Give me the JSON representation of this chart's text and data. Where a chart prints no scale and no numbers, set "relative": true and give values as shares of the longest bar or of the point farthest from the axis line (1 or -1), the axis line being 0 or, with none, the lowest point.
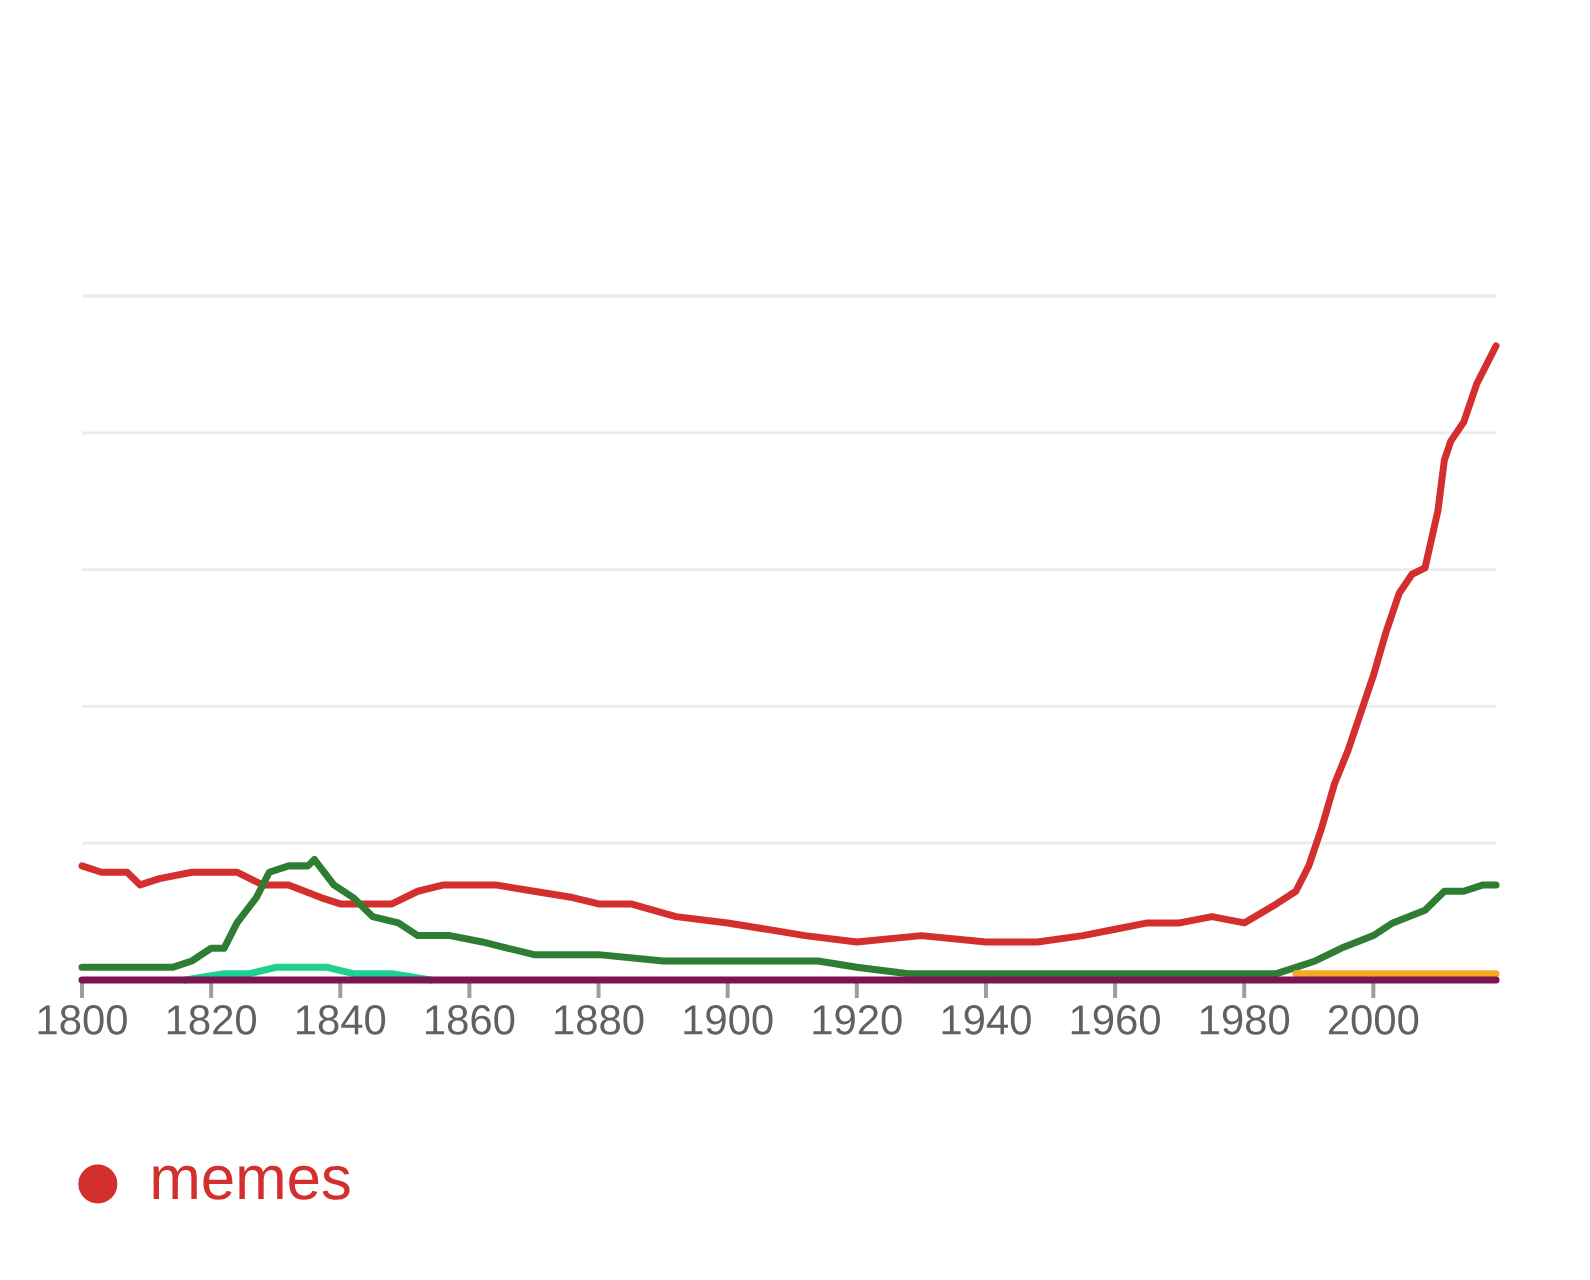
{
  "chart_data": {
    "type": "line",
    "relative": true,
    "xlim": [
      1800,
      2019
    ],
    "xticks": [
      1800,
      1820,
      1840,
      1860,
      1880,
      1900,
      1920,
      1940,
      1960,
      1980,
      2000
    ],
    "grid": "y",
    "legend": "bottom",
    "line_style": "solid",
    "series": [
      {
        "name": "memes",
        "color": "#d32f2f",
        "x": [
          1800,
          1803,
          1807,
          1809,
          1812,
          1817,
          1822,
          1824,
          1828,
          1832,
          1837,
          1840,
          1845,
          1848,
          1852,
          1856,
          1859,
          1864,
          1870,
          1876,
          1880,
          1885,
          1892,
          1900,
          1912,
          1920,
          1930,
          1940,
          1948,
          1955,
          1960,
          1965,
          1970,
          1975,
          1980,
          1985,
          1988,
          1990,
          1992,
          1994,
          1996,
          1998,
          2000,
          2002,
          2004,
          2006,
          2008,
          2010,
          2011,
          2012,
          2014,
          2016,
          2018,
          2019
        ],
        "values": [
          0.18,
          0.17,
          0.17,
          0.15,
          0.16,
          0.17,
          0.17,
          0.17,
          0.15,
          0.15,
          0.13,
          0.12,
          0.12,
          0.12,
          0.14,
          0.15,
          0.15,
          0.15,
          0.14,
          0.13,
          0.12,
          0.12,
          0.1,
          0.09,
          0.07,
          0.06,
          0.07,
          0.06,
          0.06,
          0.07,
          0.08,
          0.09,
          0.09,
          0.1,
          0.09,
          0.12,
          0.14,
          0.18,
          0.24,
          0.31,
          0.36,
          0.42,
          0.48,
          0.55,
          0.61,
          0.64,
          0.65,
          0.74,
          0.82,
          0.85,
          0.88,
          0.94,
          0.98,
          1.0
        ]
      },
      {
        "color": "#2e7d32",
        "x": [
          1800,
          1805,
          1810,
          1814,
          1817,
          1820,
          1822,
          1824,
          1827,
          1829,
          1832,
          1835,
          1836,
          1839,
          1842,
          1845,
          1849,
          1852,
          1857,
          1862,
          1866,
          1870,
          1880,
          1890,
          1900,
          1910,
          1914,
          1920,
          1928,
          1940,
          1960,
          1980,
          1985,
          1988,
          1991,
          1995,
          2000,
          2003,
          2008,
          2011,
          2014,
          2017,
          2019
        ],
        "values": [
          0.02,
          0.02,
          0.02,
          0.02,
          0.03,
          0.05,
          0.05,
          0.09,
          0.13,
          0.17,
          0.18,
          0.18,
          0.19,
          0.15,
          0.13,
          0.1,
          0.09,
          0.07,
          0.07,
          0.06,
          0.05,
          0.04,
          0.04,
          0.03,
          0.03,
          0.03,
          0.03,
          0.02,
          0.01,
          0.01,
          0.01,
          0.01,
          0.01,
          0.02,
          0.03,
          0.05,
          0.07,
          0.09,
          0.11,
          0.14,
          0.14,
          0.15,
          0.15
        ]
      },
      {
        "color": "#1fd18f",
        "x": [
          1816,
          1822,
          1826,
          1830,
          1835,
          1838,
          1842,
          1848,
          1854
        ],
        "values": [
          0,
          0.01,
          0.01,
          0.02,
          0.02,
          0.02,
          0.01,
          0.01,
          0
        ]
      },
      {
        "color": "#f9a825",
        "x": [
          1988,
          2000,
          2019
        ],
        "values": [
          0.01,
          0.01,
          0.01
        ]
      },
      {
        "color": "#7b1450",
        "x": [
          1800,
          2019
        ],
        "values": [
          0,
          0
        ]
      }
    ]
  }
}
